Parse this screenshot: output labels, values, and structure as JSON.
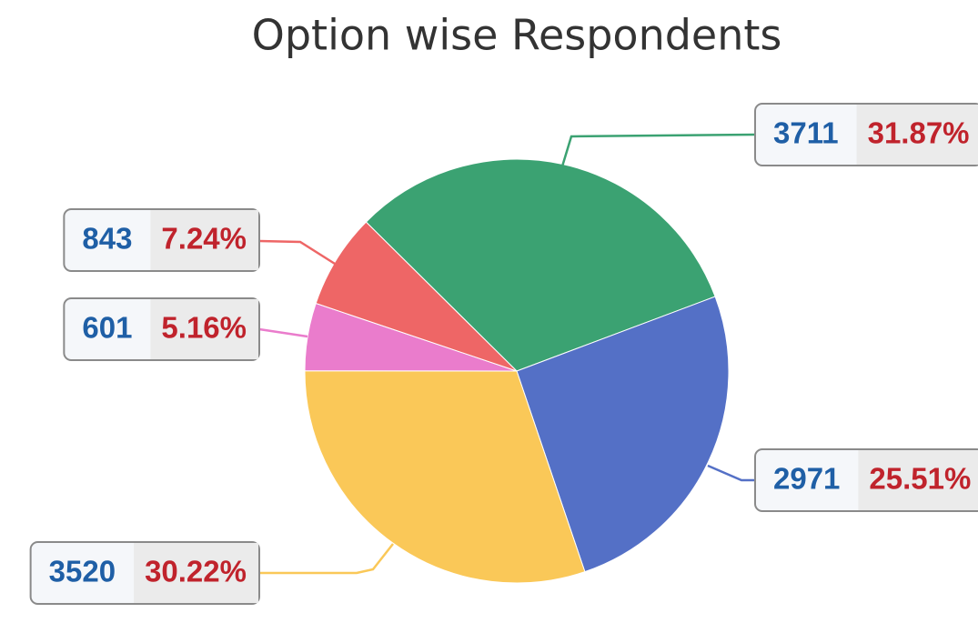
{
  "chart_data": {
    "type": "pie",
    "title": "Option wise Respondents",
    "values": [
      3711,
      2971,
      3520,
      601,
      843
    ],
    "percent_labels": [
      "31.87%",
      "25.51%",
      "30.22%",
      "5.16%",
      "7.24%"
    ],
    "colors": [
      "#3ba272",
      "#5470c6",
      "#fac858",
      "#ea7ccc",
      "#ee6666"
    ]
  }
}
